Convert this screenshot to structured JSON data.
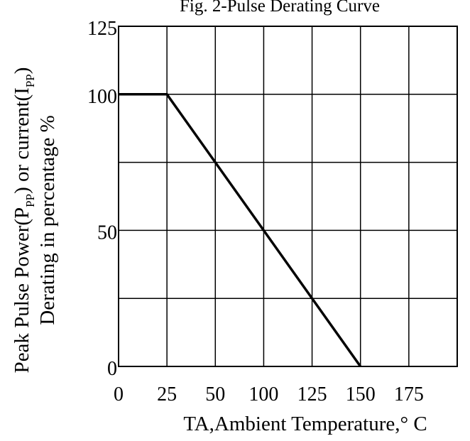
{
  "chart_data": {
    "type": "line",
    "title": "Fig. 2-Pulse Derating Curve",
    "xlabel": "TA,Ambient Temperature,° C",
    "ylabel_line1": {
      "part1": "Peak Pulse Power(P",
      "sub1": "PP",
      "part2": ") or current(I",
      "sub2": "PP",
      "part3": ")"
    },
    "ylabel_line2": "Derating in percentage %",
    "x_tick_labels": [
      "0",
      "25",
      "50",
      "100",
      "125",
      "150",
      "175"
    ],
    "y_tick_labels": [
      "0",
      "50",
      "100",
      "125"
    ],
    "ylim": [
      0,
      125
    ],
    "grid": true,
    "series": [
      {
        "x": [
          "0",
          "25",
          "100",
          "150"
        ],
        "y": [
          100,
          100,
          50,
          0
        ]
      }
    ]
  }
}
